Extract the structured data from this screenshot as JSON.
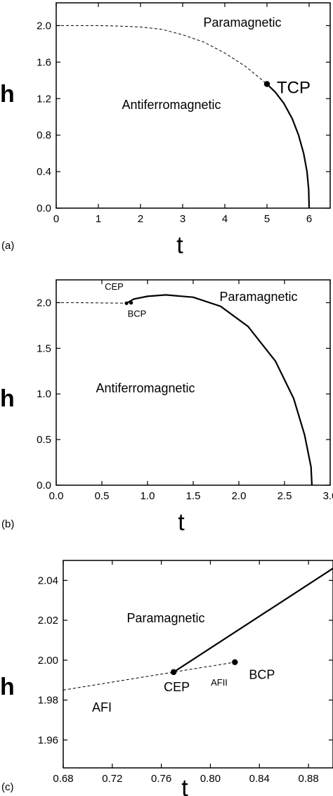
{
  "chart_data": [
    {
      "panel_label": "(a)",
      "type": "line",
      "xlabel": "t",
      "ylabel": "h",
      "xlim": [
        0,
        6.5
      ],
      "ylim": [
        0,
        2.25
      ],
      "xticks": [
        0,
        1,
        2,
        3,
        4,
        5,
        6
      ],
      "xtick_labels": [
        "0",
        "1",
        "2",
        "3",
        "4",
        "5",
        "6"
      ],
      "yticks": [
        0,
        0.4,
        0.8,
        1.2,
        1.6,
        2.0
      ],
      "ytick_labels": [
        "0.0",
        "0.4",
        "0.8",
        "1.2",
        "1.6",
        "2.0"
      ],
      "series": [
        {
          "style": "dashed",
          "points": [
            [
              0,
              2.0
            ],
            [
              0.5,
              2.0
            ],
            [
              1.0,
              2.0
            ],
            [
              1.5,
              1.995
            ],
            [
              2.0,
              1.985
            ],
            [
              2.5,
              1.96
            ],
            [
              3.0,
              1.9
            ],
            [
              3.5,
              1.82
            ],
            [
              4.0,
              1.7
            ],
            [
              4.5,
              1.55
            ],
            [
              5.0,
              1.36
            ]
          ]
        },
        {
          "style": "solid",
          "points": [
            [
              5.0,
              1.36
            ],
            [
              5.2,
              1.27
            ],
            [
              5.4,
              1.15
            ],
            [
              5.6,
              0.98
            ],
            [
              5.75,
              0.8
            ],
            [
              5.87,
              0.6
            ],
            [
              5.95,
              0.4
            ],
            [
              5.99,
              0.2
            ],
            [
              6.0,
              0.0
            ]
          ]
        }
      ],
      "points": [
        {
          "x": 5.0,
          "y": 1.36,
          "label": "TCP"
        }
      ],
      "annotations": [
        {
          "text": "Paramagnetic",
          "x": 4.65,
          "y": 2.0
        },
        {
          "text": "Antiferromagnetic",
          "x": 3.3,
          "y": 1.1
        }
      ]
    },
    {
      "panel_label": "(b)",
      "type": "line",
      "xlabel": "t",
      "ylabel": "h",
      "xlim": [
        0,
        3.0
      ],
      "ylim": [
        0,
        2.25
      ],
      "xticks": [
        0,
        0.5,
        1.0,
        1.5,
        2.0,
        2.5,
        3.0
      ],
      "xtick_labels": [
        "0.0",
        "0.5",
        "1.0",
        "1.5",
        "2.0",
        "2.5",
        "3.0"
      ],
      "yticks": [
        0,
        0.5,
        1.0,
        1.5,
        2.0
      ],
      "ytick_labels": [
        "0.0",
        "0.5",
        "1.0",
        "1.5",
        "2.0"
      ],
      "series": [
        {
          "style": "dashed",
          "points": [
            [
              0,
              2.0
            ],
            [
              0.2,
              2.0
            ],
            [
              0.4,
              1.998
            ],
            [
              0.6,
              1.996
            ],
            [
              0.77,
              1.994
            ]
          ]
        },
        {
          "style": "solid",
          "points": [
            [
              0.77,
              1.994
            ],
            [
              0.85,
              2.04
            ],
            [
              1.0,
              2.07
            ],
            [
              1.2,
              2.085
            ],
            [
              1.5,
              2.06
            ],
            [
              1.8,
              1.96
            ],
            [
              2.1,
              1.74
            ],
            [
              2.4,
              1.36
            ],
            [
              2.6,
              0.95
            ],
            [
              2.72,
              0.55
            ],
            [
              2.79,
              0.2
            ],
            [
              2.8,
              0.0
            ]
          ]
        }
      ],
      "points": [
        {
          "x": 0.77,
          "y": 1.994,
          "label": "CEP"
        },
        {
          "x": 0.82,
          "y": 1.999,
          "label": "BCP"
        }
      ],
      "annotations": [
        {
          "text": "Paramagnetic",
          "x": 2.05,
          "y": 2.05
        },
        {
          "text": "Antiferromagnetic",
          "x": 0.98,
          "y": 1.25
        }
      ]
    },
    {
      "panel_label": "(c)",
      "type": "line",
      "xlabel": "t",
      "ylabel": "h",
      "xlim": [
        0.68,
        0.9
      ],
      "ylim": [
        1.946,
        2.05
      ],
      "xticks": [
        0.68,
        0.72,
        0.76,
        0.8,
        0.84,
        0.88
      ],
      "xtick_labels": [
        "0.68",
        "0.72",
        "0.76",
        "0.80",
        "0.84",
        "0.88"
      ],
      "yticks": [
        1.96,
        1.98,
        2.0,
        2.02,
        2.04
      ],
      "ytick_labels": [
        "1.96",
        "1.98",
        "2.00",
        "2.02",
        "2.04"
      ],
      "series": [
        {
          "style": "dashed",
          "points": [
            [
              0.68,
              1.985
            ],
            [
              0.77,
              1.994
            ],
            [
              0.82,
              1.999
            ]
          ]
        },
        {
          "style": "solid",
          "points": [
            [
              0.77,
              1.994
            ],
            [
              0.9,
              2.046
            ]
          ]
        }
      ],
      "points": [
        {
          "x": 0.77,
          "y": 1.994,
          "label": "CEP"
        },
        {
          "x": 0.82,
          "y": 1.999,
          "label": "BCP"
        }
      ],
      "annotations": [
        {
          "text": "Paramagnetic",
          "x": 0.745,
          "y": 2.021
        },
        {
          "text": "AFII",
          "x": 0.805,
          "y": 2.002
        },
        {
          "text": "AFI",
          "x": 0.735,
          "y": 1.976
        }
      ]
    }
  ]
}
